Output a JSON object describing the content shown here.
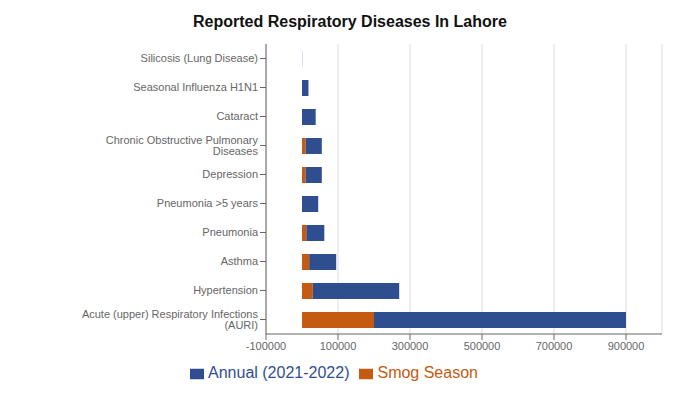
{
  "chart_data": {
    "type": "bar",
    "title": "Reported Respiratory Diseases In Lahore",
    "orientation": "horizontal",
    "stacked": true,
    "categories": [
      "Acute (upper) Respiratory Infections (AURI)",
      "Hypertension",
      "Asthma",
      "Pneumonia",
      "Pneumonia >5 years",
      "Depression",
      "Chronic Obstructive Pulmonary Diseases",
      "Cataract",
      "Seasonal Influenza H1N1",
      "Silicosis (Lung Disease)"
    ],
    "series": [
      {
        "name": "Smog Season",
        "color": "#C55A11",
        "values": [
          200000,
          30000,
          20000,
          12000,
          0,
          10000,
          10000,
          0,
          0,
          0
        ]
      },
      {
        "name": "Annual (2021-2022)",
        "color": "#2E4E8F",
        "values": [
          700000,
          240000,
          75000,
          50000,
          45000,
          45000,
          45000,
          38000,
          18000,
          500
        ]
      }
    ],
    "xlim": [
      -100000,
      1000000
    ],
    "xticks": [
      -100000,
      100000,
      300000,
      500000,
      700000,
      900000
    ],
    "grid": true,
    "legend": "bottom"
  }
}
